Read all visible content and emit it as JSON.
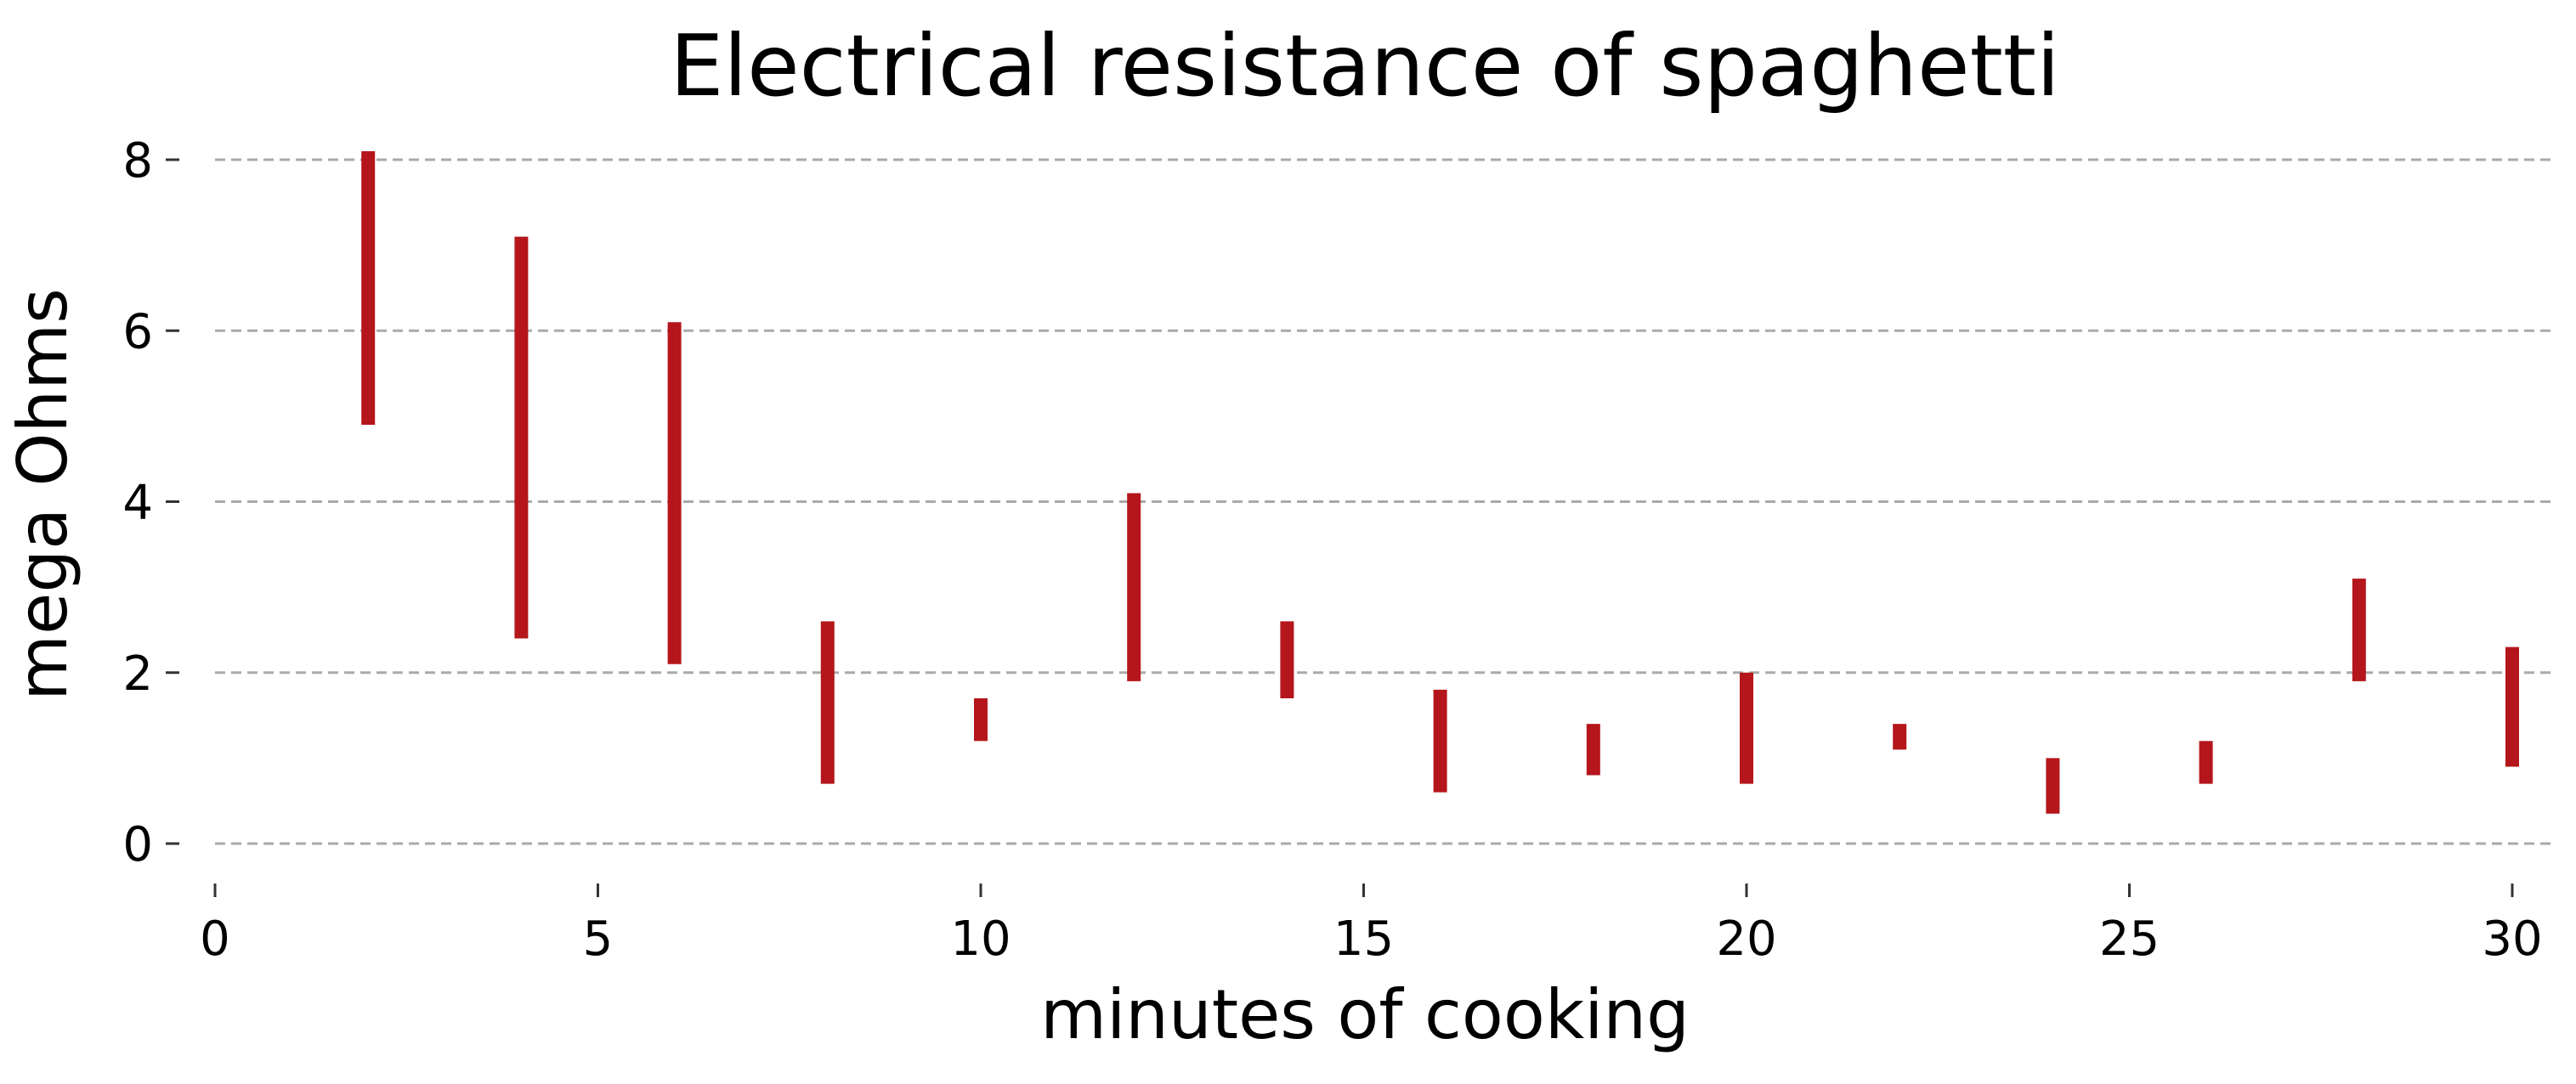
{
  "chart_data": {
    "type": "bar",
    "title": "Electrical resistance of spaghetti",
    "xlabel": "minutes of cooking",
    "ylabel": "mega Ohms",
    "xlim": [
      0,
      30.5
    ],
    "ylim": [
      -0.3,
      8.4
    ],
    "xticks": [
      0,
      5,
      10,
      15,
      20,
      25,
      30
    ],
    "yticks": [
      0,
      2,
      4,
      6,
      8
    ],
    "grid": "horizontal-dashed",
    "color": "#b4161b",
    "series": [
      {
        "x": [
          2,
          4,
          6,
          8,
          10,
          12,
          14,
          16,
          18,
          20,
          22,
          24,
          26,
          28,
          30
        ],
        "low": [
          4.9,
          2.4,
          2.1,
          0.7,
          1.2,
          1.9,
          1.7,
          0.6,
          0.8,
          0.7,
          1.1,
          0.35,
          0.7,
          1.9,
          0.9
        ],
        "high": [
          8.1,
          7.1,
          6.1,
          2.6,
          1.7,
          4.1,
          2.6,
          1.8,
          1.4,
          2.0,
          1.4,
          1.0,
          1.2,
          3.1,
          2.3
        ]
      }
    ]
  }
}
